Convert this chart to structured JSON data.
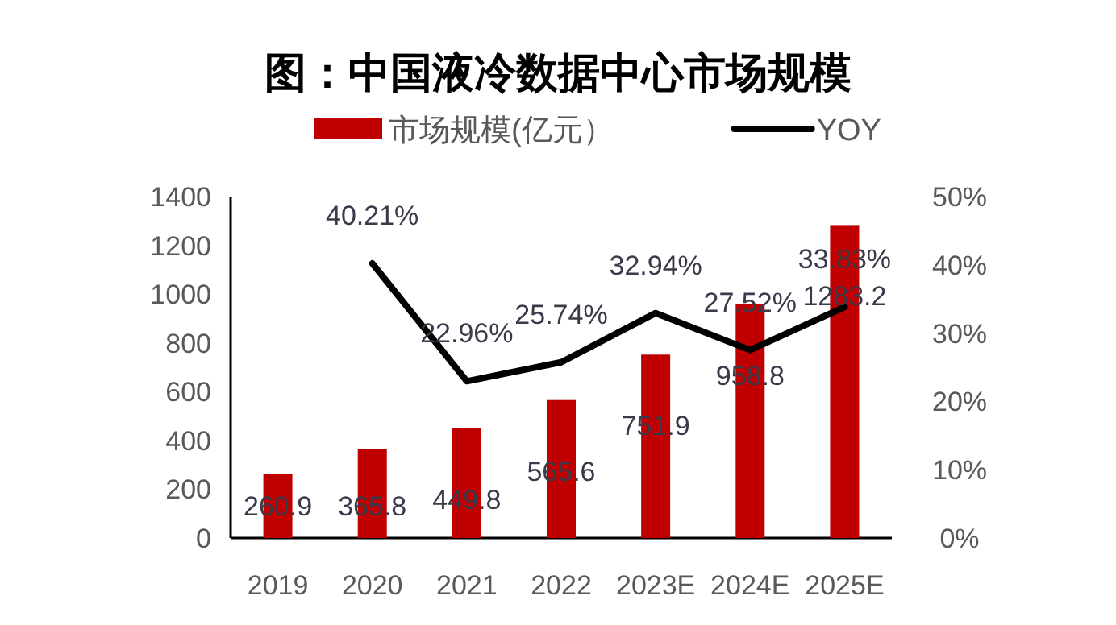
{
  "chart_data": {
    "type": "bar",
    "title": "图：中国液冷数据中心市场规模",
    "categories": [
      "2019",
      "2020",
      "2021",
      "2022",
      "2023E",
      "2024E",
      "2025E"
    ],
    "series": [
      {
        "name": "市场规模(亿元）",
        "color": "#c00000",
        "values": [
          260.9,
          365.8,
          449.8,
          565.6,
          751.9,
          958.8,
          1283.2
        ],
        "value_labels": [
          "260.9",
          "365.8",
          "449.8",
          "565.6",
          "751.9",
          "958.8",
          "1283.2"
        ]
      },
      {
        "name": "YOY",
        "type": "line",
        "axis": "y2",
        "color": "#000000",
        "marker": "none",
        "values": [
          null,
          40.21,
          22.96,
          25.74,
          32.94,
          27.52,
          33.83
        ],
        "value_labels": [
          null,
          "40.21%",
          "22.96%",
          "25.74%",
          "32.94%",
          "27.52%",
          "33.83%"
        ]
      }
    ],
    "ylim": [
      0,
      1400
    ],
    "yticks": [
      0,
      200,
      400,
      600,
      800,
      1000,
      1200,
      1400
    ],
    "y2lim": [
      0,
      50
    ],
    "y2ticks": [
      {
        "value": 0,
        "label": "0%"
      },
      {
        "value": 10,
        "label": "10%"
      },
      {
        "value": 20,
        "label": "20%"
      },
      {
        "value": 30,
        "label": "30%"
      },
      {
        "value": 40,
        "label": "40%"
      },
      {
        "value": 50,
        "label": "50%"
      }
    ],
    "legend": "top",
    "grid": false
  }
}
